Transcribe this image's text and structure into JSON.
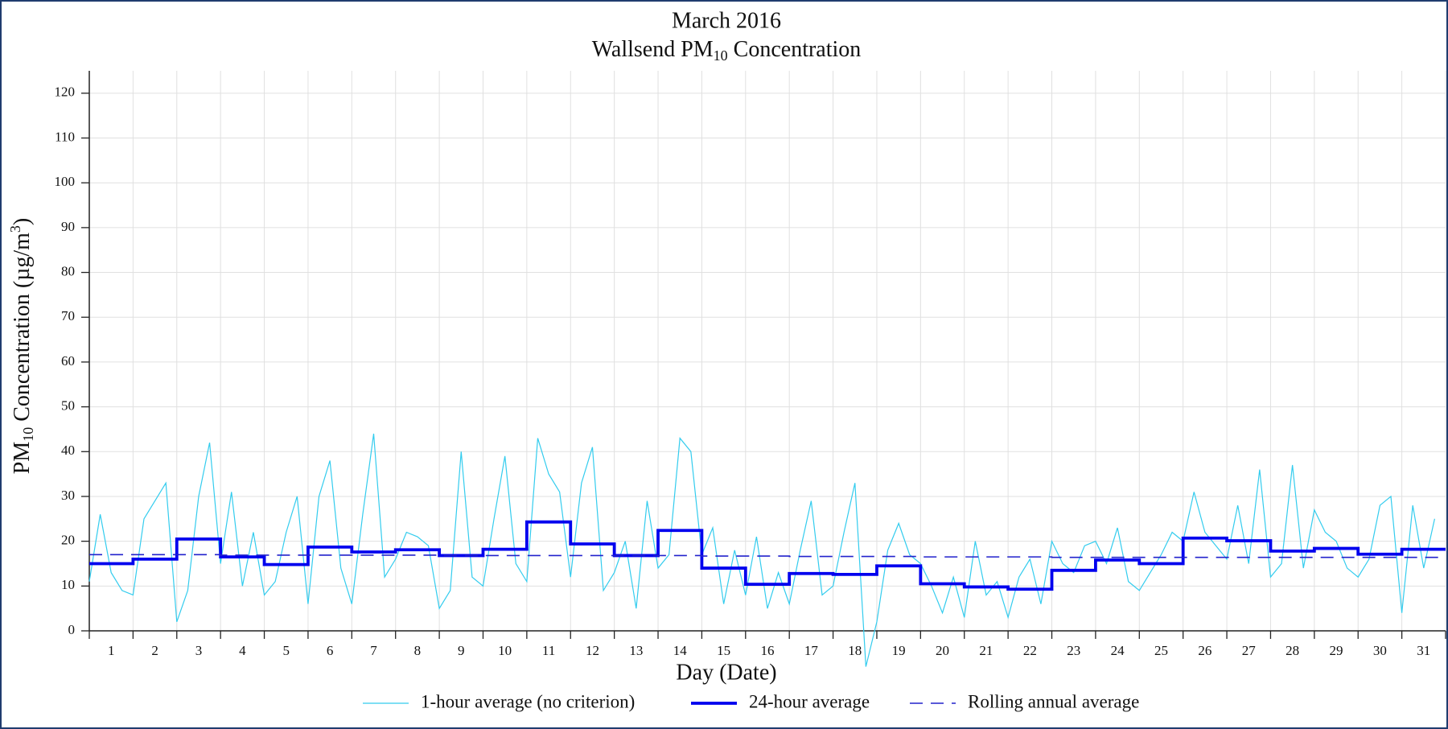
{
  "chart_data": {
    "type": "line",
    "title": "March 2016",
    "subtitle_parts": [
      "Wallsend PM",
      "10",
      " Concentration"
    ],
    "ylabel_parts": [
      "PM",
      "10",
      " Concentration (µg/m",
      "3",
      ")"
    ],
    "xlabel": "Day (Date)",
    "xlim": [
      1,
      32
    ],
    "ylim": [
      0,
      125
    ],
    "yticks": [
      0,
      10,
      20,
      30,
      40,
      50,
      60,
      70,
      80,
      90,
      100,
      110,
      120
    ],
    "xticks": [
      {
        "value": 1.5,
        "label": "1"
      },
      {
        "value": 2.5,
        "label": "2"
      },
      {
        "value": 3.5,
        "label": "3"
      },
      {
        "value": 4.5,
        "label": "4"
      },
      {
        "value": 5.5,
        "label": "5"
      },
      {
        "value": 6.5,
        "label": "6"
      },
      {
        "value": 7.5,
        "label": "7"
      },
      {
        "value": 8.5,
        "label": "8"
      },
      {
        "value": 9.5,
        "label": "9"
      },
      {
        "value": 10.5,
        "label": "10"
      },
      {
        "value": 11.5,
        "label": "11"
      },
      {
        "value": 12.5,
        "label": "12"
      },
      {
        "value": 13.5,
        "label": "13"
      },
      {
        "value": 14.5,
        "label": "14"
      },
      {
        "value": 15.5,
        "label": "15"
      },
      {
        "value": 16.5,
        "label": "16"
      },
      {
        "value": 17.5,
        "label": "17"
      },
      {
        "value": 18.5,
        "label": "18"
      },
      {
        "value": 19.5,
        "label": "19"
      },
      {
        "value": 20.5,
        "label": "20"
      },
      {
        "value": 21.5,
        "label": "21"
      },
      {
        "value": 22.5,
        "label": "22"
      },
      {
        "value": 23.5,
        "label": "23"
      },
      {
        "value": 24.5,
        "label": "24"
      },
      {
        "value": 25.5,
        "label": "25"
      },
      {
        "value": 26.5,
        "label": "26"
      },
      {
        "value": 27.5,
        "label": "27"
      },
      {
        "value": 28.5,
        "label": "28"
      },
      {
        "value": 29.5,
        "label": "29"
      },
      {
        "value": 30.5,
        "label": "30"
      },
      {
        "value": 31.5,
        "label": "31"
      }
    ],
    "grid": true,
    "series": [
      {
        "name": "1-hour average (no criterion)",
        "color": "#33ccee",
        "style": "thin",
        "x": [
          1,
          1.25,
          1.5,
          1.75,
          2,
          2.25,
          2.5,
          2.75,
          3,
          3.25,
          3.5,
          3.75,
          4,
          4.25,
          4.5,
          4.75,
          5,
          5.25,
          5.5,
          5.75,
          6,
          6.25,
          6.5,
          6.75,
          7,
          7.25,
          7.5,
          7.75,
          8,
          8.25,
          8.5,
          8.75,
          9,
          9.25,
          9.5,
          9.75,
          10,
          10.25,
          10.5,
          10.75,
          11,
          11.25,
          11.5,
          11.75,
          12,
          12.25,
          12.5,
          12.75,
          13,
          13.25,
          13.5,
          13.75,
          14,
          14.25,
          14.5,
          14.75,
          15,
          15.25,
          15.5,
          15.75,
          16,
          16.25,
          16.5,
          16.75,
          17,
          17.25,
          17.5,
          17.75,
          18,
          18.25,
          18.5,
          18.75,
          19,
          19.25,
          19.5,
          19.75,
          20,
          20.25,
          20.5,
          20.75,
          21,
          21.25,
          21.5,
          21.75,
          22,
          22.25,
          22.5,
          22.75,
          23,
          23.25,
          23.5,
          23.75,
          24,
          24.25,
          24.5,
          24.75,
          25,
          25.25,
          25.5,
          25.75,
          26,
          26.25,
          26.5,
          26.75,
          27,
          27.25,
          27.5,
          27.75,
          28,
          28.25,
          28.5,
          28.75,
          29,
          29.25,
          29.5,
          29.75,
          30,
          30.25,
          30.5,
          30.75,
          31,
          31.25,
          31.5,
          31.75
        ],
        "values": [
          11,
          26,
          13,
          9,
          8,
          25,
          29,
          33,
          2,
          9,
          30,
          42,
          15,
          31,
          10,
          22,
          8,
          11,
          22,
          30,
          6,
          30,
          38,
          14,
          6,
          26,
          44,
          12,
          16,
          22,
          21,
          19,
          5,
          9,
          40,
          12,
          10,
          25,
          39,
          15,
          11,
          43,
          35,
          31,
          12,
          33,
          41,
          9,
          13,
          20,
          5,
          29,
          14,
          17,
          43,
          40,
          17,
          23,
          6,
          18,
          8,
          21,
          5,
          13,
          6,
          18,
          29,
          8,
          10,
          22,
          33,
          -8,
          2,
          18,
          24,
          17,
          15,
          10,
          4,
          12,
          3,
          20,
          8,
          11,
          3,
          12,
          16,
          6,
          20,
          15,
          13,
          19,
          20,
          15,
          23,
          11,
          9,
          13,
          17,
          22,
          20,
          31,
          22,
          19,
          16,
          28,
          15,
          36,
          12,
          15,
          37,
          14,
          27,
          22,
          20,
          14,
          12,
          16,
          28,
          30,
          4,
          28,
          14,
          25
        ]
      },
      {
        "name": "24-hour average",
        "color": "#0000ee",
        "style": "step",
        "x": [
          1,
          2,
          3,
          4,
          5,
          6,
          7,
          8,
          9,
          10,
          11,
          12,
          13,
          14,
          15,
          16,
          17,
          18,
          19,
          20,
          21,
          22,
          23,
          24,
          25,
          26,
          27,
          28,
          29,
          30,
          31
        ],
        "values": [
          15,
          16,
          20.5,
          16.5,
          14.8,
          18.7,
          17.6,
          18.1,
          16.8,
          18.2,
          24.3,
          19.4,
          16.8,
          22.4,
          14,
          10.4,
          12.8,
          12.6,
          14.5,
          10.5,
          9.8,
          9.3,
          13.5,
          15.8,
          15,
          20.7,
          20.1,
          17.8,
          18.4,
          17.1,
          18.2
        ]
      },
      {
        "name": "Rolling annual average",
        "color": "#2222cc",
        "style": "dash",
        "x": [
          1,
          2,
          3,
          4,
          5,
          6,
          7,
          8,
          9,
          10,
          11,
          12,
          13,
          14,
          15,
          16,
          17,
          18,
          19,
          20,
          21,
          22,
          23,
          24,
          25,
          26,
          27,
          28,
          29,
          30,
          31
        ],
        "values": [
          17,
          17,
          17,
          16.9,
          16.9,
          16.9,
          16.9,
          16.9,
          16.8,
          16.8,
          16.8,
          16.8,
          16.8,
          16.8,
          16.7,
          16.7,
          16.6,
          16.6,
          16.6,
          16.5,
          16.5,
          16.5,
          16.4,
          16.4,
          16.4,
          16.4,
          16.4,
          16.4,
          16.4,
          16.4,
          16.4
        ]
      }
    ]
  }
}
